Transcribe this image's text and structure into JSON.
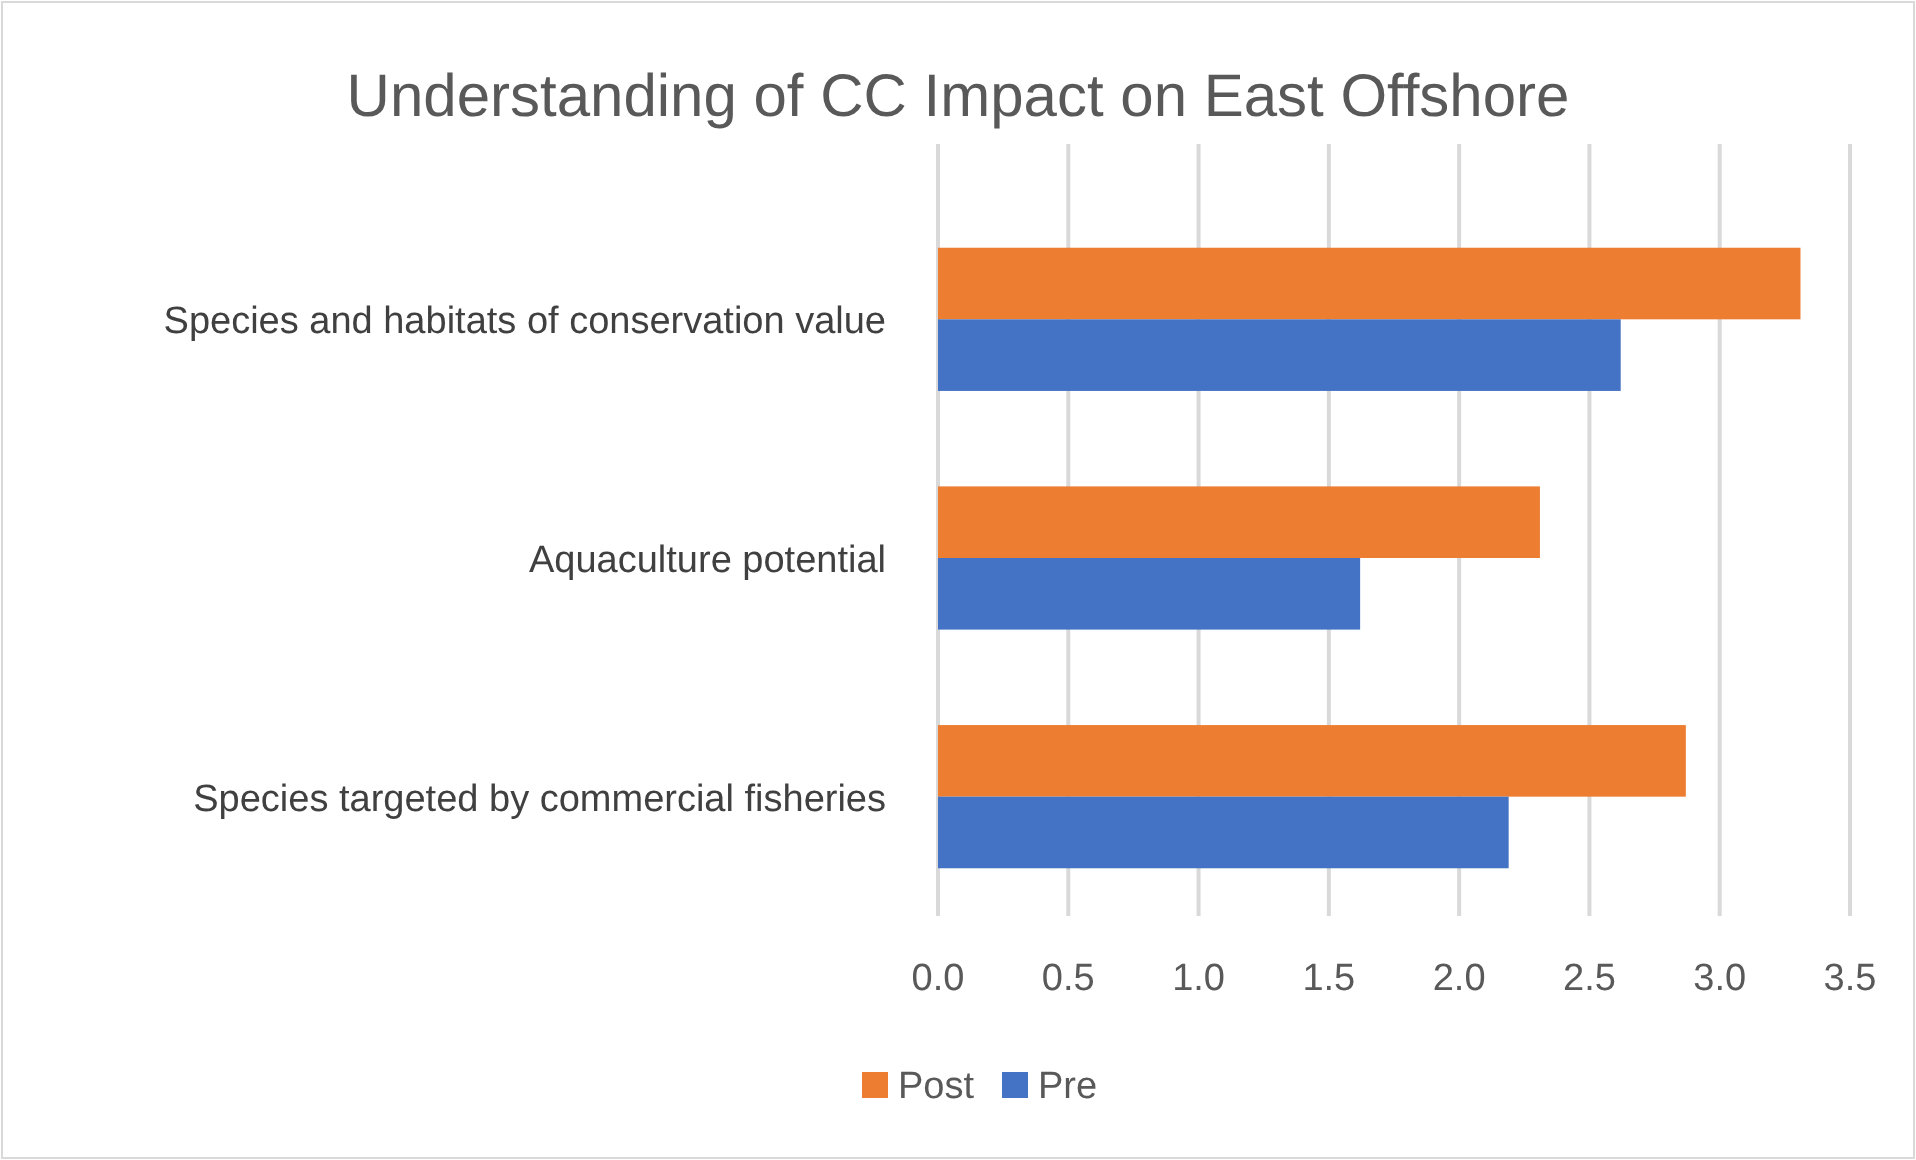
{
  "chart_data": {
    "type": "bar",
    "orientation": "horizontal",
    "title": "Understanding of CC Impact on East Offshore",
    "categories": [
      "Species and habitats of conservation value",
      "Aquaculture potential",
      "Species targeted by commercial fisheries"
    ],
    "series": [
      {
        "name": "Post",
        "color": "#ed7d31",
        "values": [
          3.31,
          2.31,
          2.87
        ]
      },
      {
        "name": "Pre",
        "color": "#4472c4",
        "values": [
          2.62,
          1.62,
          2.19
        ]
      }
    ],
    "xlim": [
      0,
      3.5
    ],
    "xticks": [
      {
        "value": 0,
        "label": "0.0"
      },
      0.5,
      {
        "value": 1,
        "label": "1.0"
      },
      1.5,
      {
        "value": 2,
        "label": "2.0"
      },
      2.5,
      {
        "value": 3,
        "label": "3.0"
      },
      3.5
    ],
    "grid": "x",
    "legend": "bottom"
  }
}
